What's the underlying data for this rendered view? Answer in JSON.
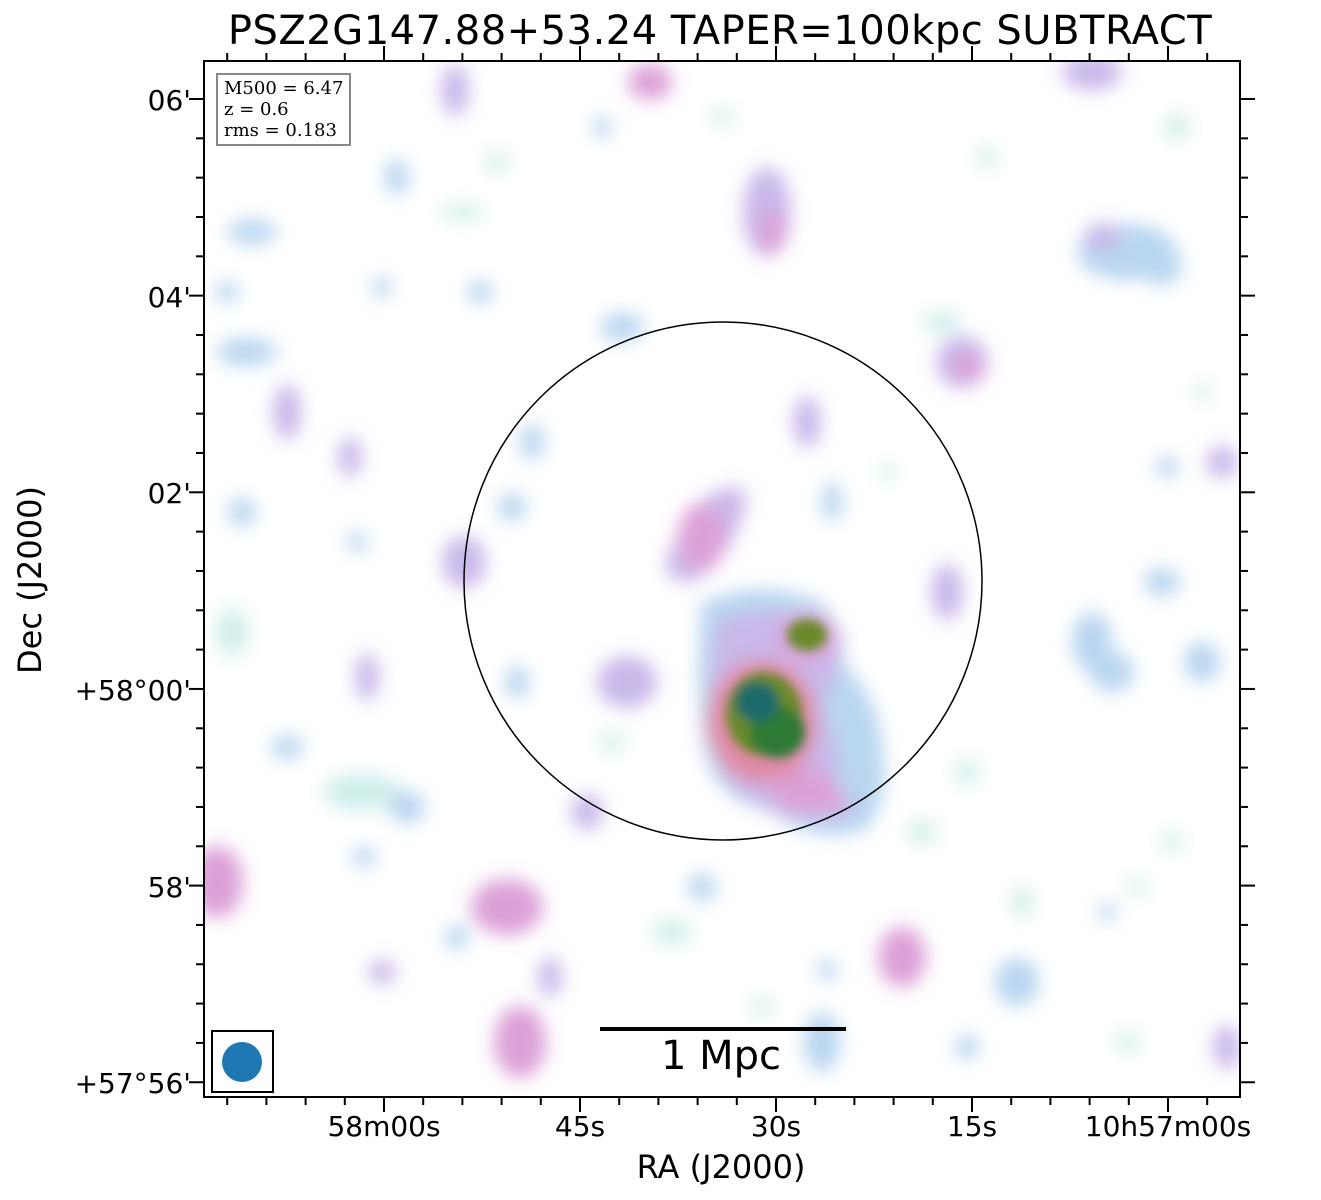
{
  "title": "PSZ2G147.88+53.24 TAPER=100kpc SUBTRACT",
  "info_box": {
    "m500": "M500 = 6.47",
    "z": "z = 0.6",
    "rms": "rms = 0.183"
  },
  "axes": {
    "x_label": "RA (J2000)",
    "y_label": "Dec (J2000)",
    "x_ticks": [
      "58m00s",
      "45s",
      "30s",
      "15s",
      "10h57m00s"
    ],
    "y_ticks": [
      "06'",
      "04'",
      "02'",
      "+58°00'",
      "58'",
      "+57°56'"
    ]
  },
  "scale_bar": {
    "label": "1 Mpc"
  },
  "beam_color": "#1f77b4",
  "colormap": [
    "#cfeeea",
    "#b8d6f0",
    "#c9b8ea",
    "#dca0d8",
    "#e08aa6",
    "#6a8a2a",
    "#2f7a36",
    "#1b6a6a"
  ]
}
